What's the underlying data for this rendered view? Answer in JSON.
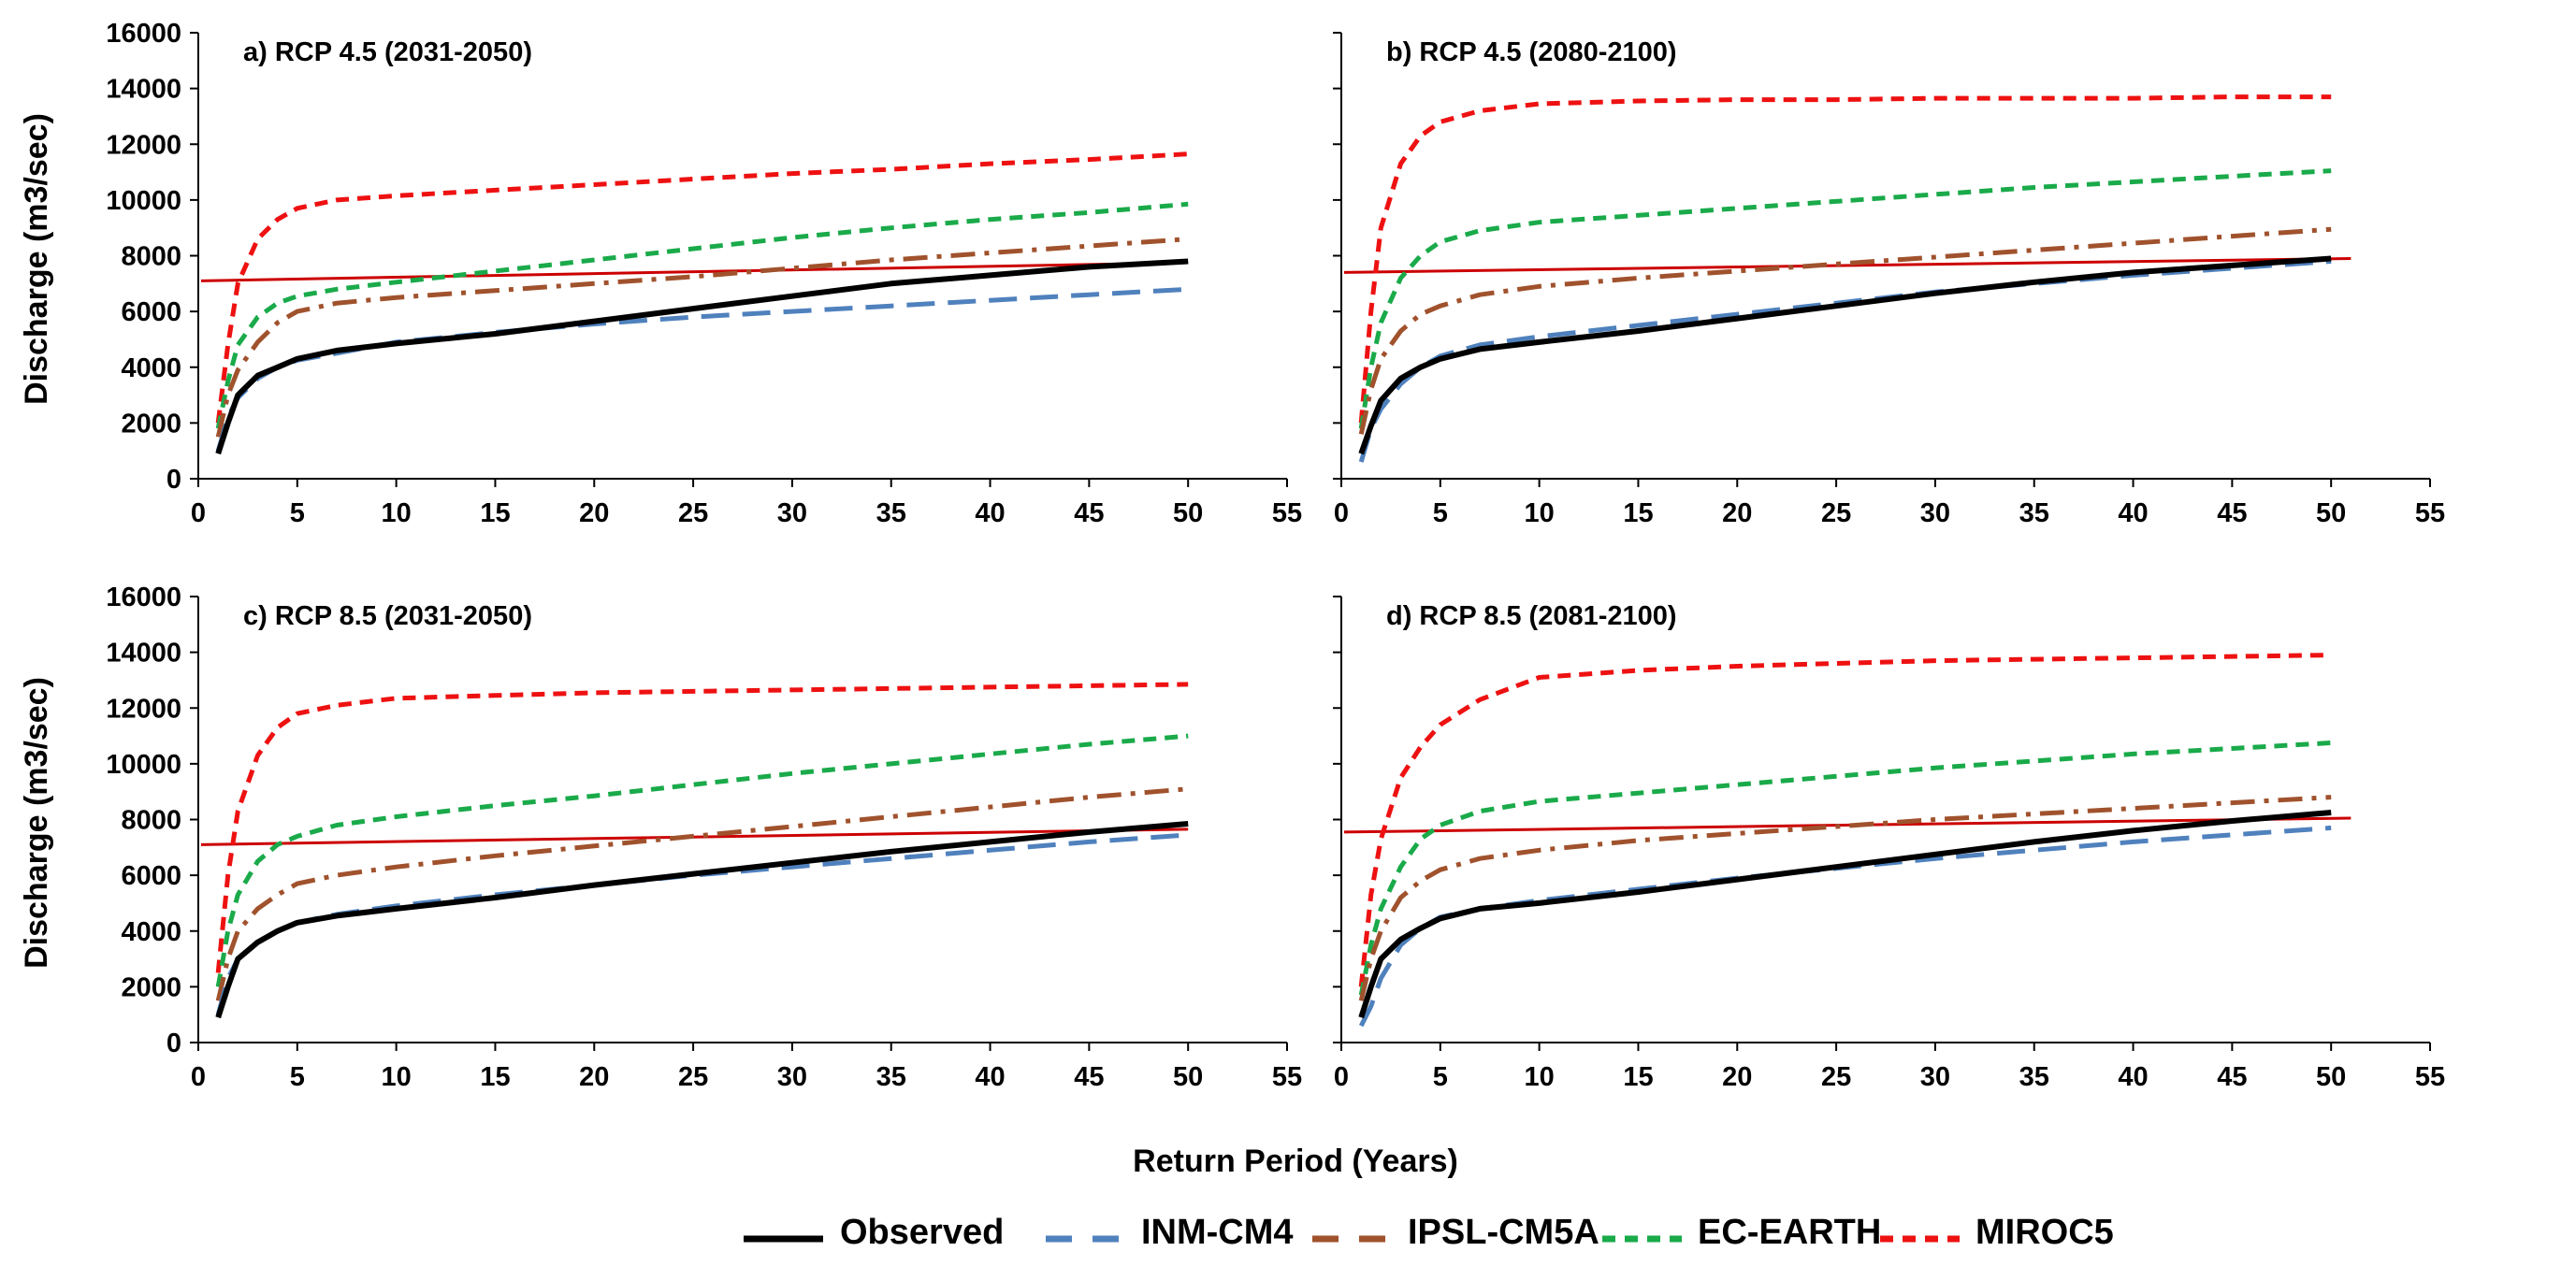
{
  "chart_data": {
    "type": "line",
    "xlabel": "Return Period (Years)",
    "ylabel": "Discharge (m3/sec)",
    "xlim": [
      0,
      55
    ],
    "ylim": [
      0,
      16000
    ],
    "x_ticks": [
      "0",
      "5",
      "10",
      "15",
      "20",
      "25",
      "30",
      "35",
      "40",
      "45",
      "50",
      "55"
    ],
    "y_ticks": [
      "0",
      "2000",
      "4000",
      "6000",
      "8000",
      "10000",
      "12000",
      "14000",
      "16000"
    ],
    "x": [
      1,
      1.5,
      2,
      3,
      4,
      5,
      7,
      10,
      15,
      20,
      25,
      30,
      35,
      40,
      45,
      50
    ],
    "legend": [
      {
        "name": "Observed",
        "color": "#000000",
        "style": "solid"
      },
      {
        "name": "INM-CM4",
        "color": "#4f81bd",
        "style": "dashed"
      },
      {
        "name": "IPSL-CM5A",
        "color": "#a0522d",
        "style": "dashdot"
      },
      {
        "name": "EC-EARTH",
        "color": "#1aaa4a",
        "style": "dashed"
      },
      {
        "name": "MIROC5",
        "color": "#ee1111",
        "style": "dashed"
      }
    ],
    "panels": [
      {
        "title": "a) RCP 4.5 (2031-2050)",
        "threshold": {
          "x": [
            0,
            50
          ],
          "y": [
            7100,
            7750
          ],
          "color": "#cc0000"
        },
        "series": [
          {
            "name": "Observed",
            "values": [
              900,
              2000,
              3000,
              3700,
              4000,
              4300,
              4600,
              4850,
              5200,
              5650,
              6100,
              6550,
              7000,
              7300,
              7600,
              7800
            ]
          },
          {
            "name": "INM-CM4",
            "values": [
              1000,
              2200,
              2900,
              3600,
              4000,
              4250,
              4500,
              4900,
              5250,
              5550,
              5800,
              6000,
              6200,
              6400,
              6600,
              6800
            ]
          },
          {
            "name": "IPSL-CM5A",
            "values": [
              1500,
              3000,
              3900,
              4900,
              5600,
              6000,
              6300,
              6500,
              6750,
              7000,
              7250,
              7550,
              7850,
              8100,
              8350,
              8600
            ]
          },
          {
            "name": "EC-EARTH",
            "values": [
              1800,
              3500,
              4800,
              5800,
              6300,
              6550,
              6800,
              7050,
              7450,
              7850,
              8250,
              8650,
              9000,
              9300,
              9550,
              9850
            ]
          },
          {
            "name": "MIROC5",
            "values": [
              2000,
              4800,
              7000,
              8600,
              9300,
              9700,
              10000,
              10150,
              10350,
              10550,
              10750,
              10950,
              11100,
              11300,
              11450,
              11650
            ]
          }
        ]
      },
      {
        "title": "b) RCP 4.5 (2080-2100)",
        "threshold": {
          "x": [
            0,
            51
          ],
          "y": [
            7400,
            7900
          ],
          "color": "#cc0000"
        },
        "series": [
          {
            "name": "Observed",
            "values": [
              900,
              1900,
              2800,
              3600,
              4000,
              4300,
              4650,
              4900,
              5300,
              5750,
              6200,
              6650,
              7050,
              7400,
              7650,
              7900
            ]
          },
          {
            "name": "INM-CM4",
            "values": [
              600,
              1800,
              2500,
              3400,
              4000,
              4400,
              4800,
              5100,
              5500,
              5900,
              6300,
              6700,
              7000,
              7300,
              7550,
              7800
            ]
          },
          {
            "name": "IPSL-CM5A",
            "values": [
              1600,
              3200,
              4300,
              5300,
              5900,
              6200,
              6600,
              6900,
              7200,
              7450,
              7700,
              7950,
              8200,
              8450,
              8700,
              8950
            ]
          },
          {
            "name": "EC-EARTH",
            "values": [
              1800,
              4000,
              5600,
              7200,
              8000,
              8500,
              8900,
              9200,
              9450,
              9700,
              9950,
              10200,
              10450,
              10650,
              10850,
              11050
            ]
          },
          {
            "name": "MIROC5",
            "values": [
              2000,
              6000,
              9000,
              11300,
              12300,
              12800,
              13200,
              13450,
              13550,
              13600,
              13600,
              13650,
              13650,
              13650,
              13700,
              13700
            ]
          }
        ]
      },
      {
        "title": "c) RCP 8.5 (2031-2050)",
        "threshold": {
          "x": [
            0,
            50
          ],
          "y": [
            7100,
            7650
          ],
          "color": "#cc0000"
        },
        "series": [
          {
            "name": "Observed",
            "values": [
              900,
              2000,
              3000,
              3600,
              4000,
              4300,
              4550,
              4800,
              5200,
              5650,
              6050,
              6450,
              6850,
              7200,
              7550,
              7850
            ]
          },
          {
            "name": "INM-CM4",
            "values": [
              1000,
              2300,
              3000,
              3600,
              4000,
              4300,
              4600,
              4900,
              5300,
              5650,
              6000,
              6300,
              6600,
              6900,
              7200,
              7450
            ]
          },
          {
            "name": "IPSL-CM5A",
            "values": [
              1500,
              3000,
              4000,
              4800,
              5300,
              5700,
              6000,
              6300,
              6700,
              7050,
              7400,
              7750,
              8100,
              8450,
              8800,
              9100
            ]
          },
          {
            "name": "EC-EARTH",
            "values": [
              2000,
              4000,
              5300,
              6500,
              7100,
              7400,
              7800,
              8100,
              8500,
              8850,
              9250,
              9650,
              10000,
              10350,
              10700,
              11000
            ]
          },
          {
            "name": "MIROC5",
            "values": [
              2500,
              6000,
              8300,
              10300,
              11300,
              11800,
              12100,
              12350,
              12450,
              12550,
              12600,
              12650,
              12700,
              12750,
              12800,
              12850
            ]
          }
        ]
      },
      {
        "title": "d) RCP 8.5 (2081-2100)",
        "threshold": {
          "x": [
            0,
            51
          ],
          "y": [
            7550,
            8050
          ],
          "color": "#cc0000"
        },
        "series": [
          {
            "name": "Observed",
            "values": [
              900,
              2000,
              3000,
              3700,
              4100,
              4450,
              4800,
              5000,
              5400,
              5850,
              6300,
              6750,
              7200,
              7600,
              7950,
              8250
            ]
          },
          {
            "name": "INM-CM4",
            "values": [
              600,
              1300,
              2300,
              3500,
              4100,
              4500,
              4800,
              5100,
              5500,
              5900,
              6250,
              6600,
              6900,
              7200,
              7450,
              7700
            ]
          },
          {
            "name": "IPSL-CM5A",
            "values": [
              1500,
              3000,
              4000,
              5200,
              5800,
              6200,
              6600,
              6900,
              7250,
              7500,
              7750,
              8000,
              8200,
              8400,
              8600,
              8800
            ]
          },
          {
            "name": "EC-EARTH",
            "values": [
              1700,
              3500,
              4800,
              6300,
              7300,
              7800,
              8300,
              8650,
              8950,
              9250,
              9550,
              9850,
              10100,
              10350,
              10550,
              10750
            ]
          },
          {
            "name": "MIROC5",
            "values": [
              2000,
              5300,
              7300,
              9500,
              10600,
              11400,
              12300,
              13100,
              13350,
              13500,
              13600,
              13700,
              13750,
              13800,
              13850,
              13900
            ]
          }
        ]
      }
    ]
  }
}
